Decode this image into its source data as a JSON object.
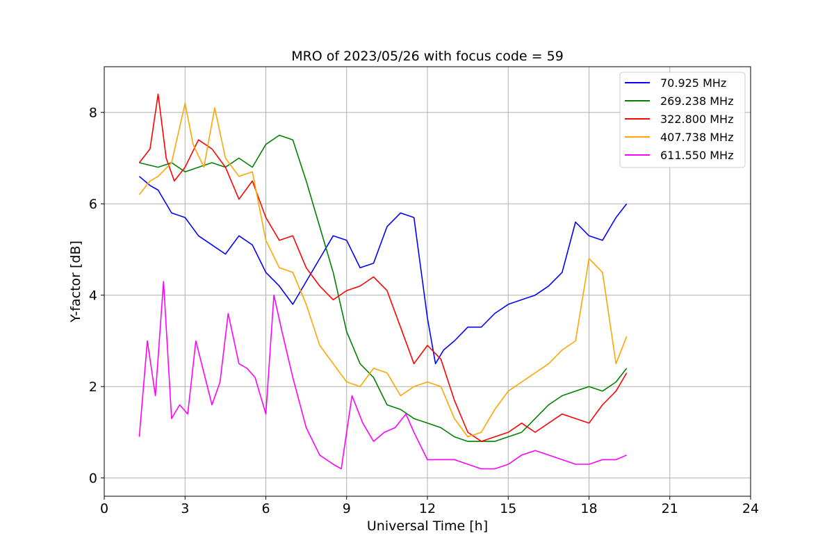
{
  "chart_data": {
    "type": "line",
    "title": "MRO of 2023/05/26 with focus code = 59",
    "xlabel": "Universal Time [h]",
    "ylabel": "Y-factor [dB]",
    "xlim": [
      0,
      24
    ],
    "ylim": [
      -0.4,
      9.0
    ],
    "xticks": [
      0,
      3,
      6,
      9,
      12,
      15,
      18,
      21,
      24
    ],
    "yticks": [
      0,
      2,
      4,
      6,
      8
    ],
    "grid": true,
    "legend_position": "top-right",
    "series": [
      {
        "name": "70.925 MHz",
        "color": "#0000ff",
        "points": [
          [
            1.3,
            6.6
          ],
          [
            1.7,
            6.4
          ],
          [
            2.0,
            6.3
          ],
          [
            2.5,
            5.8
          ],
          [
            3.0,
            5.7
          ],
          [
            3.5,
            5.3
          ],
          [
            4.0,
            5.1
          ],
          [
            4.5,
            4.9
          ],
          [
            5.0,
            5.3
          ],
          [
            5.5,
            5.1
          ],
          [
            6.0,
            4.5
          ],
          [
            6.5,
            4.2
          ],
          [
            7.0,
            3.8
          ],
          [
            7.5,
            4.3
          ],
          [
            8.0,
            4.8
          ],
          [
            8.5,
            5.3
          ],
          [
            9.0,
            5.2
          ],
          [
            9.5,
            4.6
          ],
          [
            10.0,
            4.7
          ],
          [
            10.5,
            5.5
          ],
          [
            11.0,
            5.8
          ],
          [
            11.5,
            5.7
          ],
          [
            12.0,
            3.5
          ],
          [
            12.3,
            2.5
          ],
          [
            12.6,
            2.8
          ],
          [
            13.0,
            3.0
          ],
          [
            13.5,
            3.3
          ],
          [
            14.0,
            3.3
          ],
          [
            14.5,
            3.6
          ],
          [
            15.0,
            3.8
          ],
          [
            15.5,
            3.9
          ],
          [
            16.0,
            4.0
          ],
          [
            16.5,
            4.2
          ],
          [
            17.0,
            4.5
          ],
          [
            17.5,
            5.6
          ],
          [
            18.0,
            5.3
          ],
          [
            18.5,
            5.2
          ],
          [
            19.0,
            5.7
          ],
          [
            19.4,
            6.0
          ]
        ]
      },
      {
        "name": "269.238 MHz",
        "color": "#008000",
        "points": [
          [
            1.3,
            6.9
          ],
          [
            2.0,
            6.8
          ],
          [
            2.5,
            6.9
          ],
          [
            3.0,
            6.7
          ],
          [
            3.5,
            6.8
          ],
          [
            4.0,
            6.9
          ],
          [
            4.5,
            6.8
          ],
          [
            5.0,
            7.0
          ],
          [
            5.5,
            6.8
          ],
          [
            6.0,
            7.3
          ],
          [
            6.5,
            7.5
          ],
          [
            7.0,
            7.4
          ],
          [
            7.5,
            6.5
          ],
          [
            8.0,
            5.5
          ],
          [
            8.5,
            4.5
          ],
          [
            9.0,
            3.2
          ],
          [
            9.5,
            2.5
          ],
          [
            10.0,
            2.2
          ],
          [
            10.5,
            1.6
          ],
          [
            11.0,
            1.5
          ],
          [
            11.5,
            1.3
          ],
          [
            12.0,
            1.2
          ],
          [
            12.5,
            1.1
          ],
          [
            13.0,
            0.9
          ],
          [
            13.5,
            0.8
          ],
          [
            14.0,
            0.8
          ],
          [
            14.5,
            0.8
          ],
          [
            15.0,
            0.9
          ],
          [
            15.5,
            1.0
          ],
          [
            16.0,
            1.3
          ],
          [
            16.5,
            1.6
          ],
          [
            17.0,
            1.8
          ],
          [
            17.5,
            1.9
          ],
          [
            18.0,
            2.0
          ],
          [
            18.5,
            1.9
          ],
          [
            19.0,
            2.1
          ],
          [
            19.4,
            2.4
          ]
        ]
      },
      {
        "name": "322.800 MHz",
        "color": "#ff0000",
        "points": [
          [
            1.3,
            6.9
          ],
          [
            1.7,
            7.2
          ],
          [
            2.0,
            8.4
          ],
          [
            2.3,
            7.0
          ],
          [
            2.6,
            6.5
          ],
          [
            3.0,
            6.8
          ],
          [
            3.5,
            7.4
          ],
          [
            4.0,
            7.2
          ],
          [
            4.5,
            6.8
          ],
          [
            5.0,
            6.1
          ],
          [
            5.5,
            6.5
          ],
          [
            6.0,
            5.7
          ],
          [
            6.5,
            5.2
          ],
          [
            7.0,
            5.3
          ],
          [
            7.5,
            4.6
          ],
          [
            8.0,
            4.2
          ],
          [
            8.5,
            3.9
          ],
          [
            9.0,
            4.1
          ],
          [
            9.5,
            4.2
          ],
          [
            10.0,
            4.4
          ],
          [
            10.5,
            4.1
          ],
          [
            11.0,
            3.3
          ],
          [
            11.5,
            2.5
          ],
          [
            12.0,
            2.9
          ],
          [
            12.5,
            2.6
          ],
          [
            13.0,
            1.7
          ],
          [
            13.5,
            1.0
          ],
          [
            14.0,
            0.8
          ],
          [
            14.5,
            0.9
          ],
          [
            15.0,
            1.0
          ],
          [
            15.5,
            1.2
          ],
          [
            16.0,
            1.0
          ],
          [
            16.5,
            1.2
          ],
          [
            17.0,
            1.4
          ],
          [
            17.5,
            1.3
          ],
          [
            18.0,
            1.2
          ],
          [
            18.5,
            1.6
          ],
          [
            19.0,
            1.9
          ],
          [
            19.4,
            2.3
          ]
        ]
      },
      {
        "name": "407.738 MHz",
        "color": "#ffa500",
        "points": [
          [
            1.3,
            6.2
          ],
          [
            1.7,
            6.5
          ],
          [
            2.0,
            6.6
          ],
          [
            2.5,
            6.9
          ],
          [
            3.0,
            8.2
          ],
          [
            3.3,
            7.3
          ],
          [
            3.7,
            6.8
          ],
          [
            4.1,
            8.1
          ],
          [
            4.5,
            7.0
          ],
          [
            5.0,
            6.6
          ],
          [
            5.5,
            6.7
          ],
          [
            6.0,
            5.2
          ],
          [
            6.5,
            4.6
          ],
          [
            7.0,
            4.5
          ],
          [
            7.5,
            3.8
          ],
          [
            8.0,
            2.9
          ],
          [
            8.5,
            2.5
          ],
          [
            9.0,
            2.1
          ],
          [
            9.5,
            2.0
          ],
          [
            10.0,
            2.4
          ],
          [
            10.5,
            2.3
          ],
          [
            11.0,
            1.8
          ],
          [
            11.5,
            2.0
          ],
          [
            12.0,
            2.1
          ],
          [
            12.5,
            2.0
          ],
          [
            13.0,
            1.3
          ],
          [
            13.5,
            0.9
          ],
          [
            14.0,
            1.0
          ],
          [
            14.5,
            1.5
          ],
          [
            15.0,
            1.9
          ],
          [
            15.5,
            2.1
          ],
          [
            16.0,
            2.3
          ],
          [
            16.5,
            2.5
          ],
          [
            17.0,
            2.8
          ],
          [
            17.5,
            3.0
          ],
          [
            18.0,
            4.8
          ],
          [
            18.5,
            4.5
          ],
          [
            19.0,
            2.5
          ],
          [
            19.4,
            3.1
          ]
        ]
      },
      {
        "name": "611.550 MHz",
        "color": "#ff00ff",
        "points": [
          [
            1.3,
            0.9
          ],
          [
            1.6,
            3.0
          ],
          [
            1.9,
            1.8
          ],
          [
            2.2,
            4.3
          ],
          [
            2.5,
            1.3
          ],
          [
            2.8,
            1.6
          ],
          [
            3.1,
            1.4
          ],
          [
            3.4,
            3.0
          ],
          [
            3.7,
            2.3
          ],
          [
            4.0,
            1.6
          ],
          [
            4.3,
            2.1
          ],
          [
            4.6,
            3.6
          ],
          [
            5.0,
            2.5
          ],
          [
            5.3,
            2.4
          ],
          [
            5.6,
            2.2
          ],
          [
            6.0,
            1.4
          ],
          [
            6.3,
            4.0
          ],
          [
            6.6,
            3.2
          ],
          [
            7.0,
            2.2
          ],
          [
            7.5,
            1.1
          ],
          [
            8.0,
            0.5
          ],
          [
            8.5,
            0.3
          ],
          [
            8.8,
            0.2
          ],
          [
            9.2,
            1.8
          ],
          [
            9.6,
            1.2
          ],
          [
            10.0,
            0.8
          ],
          [
            10.4,
            1.0
          ],
          [
            10.8,
            1.1
          ],
          [
            11.2,
            1.4
          ],
          [
            11.5,
            1.0
          ],
          [
            12.0,
            0.4
          ],
          [
            12.5,
            0.4
          ],
          [
            13.0,
            0.4
          ],
          [
            13.5,
            0.3
          ],
          [
            14.0,
            0.2
          ],
          [
            14.5,
            0.2
          ],
          [
            15.0,
            0.3
          ],
          [
            15.5,
            0.5
          ],
          [
            16.0,
            0.6
          ],
          [
            16.5,
            0.5
          ],
          [
            17.0,
            0.4
          ],
          [
            17.5,
            0.3
          ],
          [
            18.0,
            0.3
          ],
          [
            18.5,
            0.4
          ],
          [
            19.0,
            0.4
          ],
          [
            19.4,
            0.5
          ]
        ]
      }
    ]
  }
}
